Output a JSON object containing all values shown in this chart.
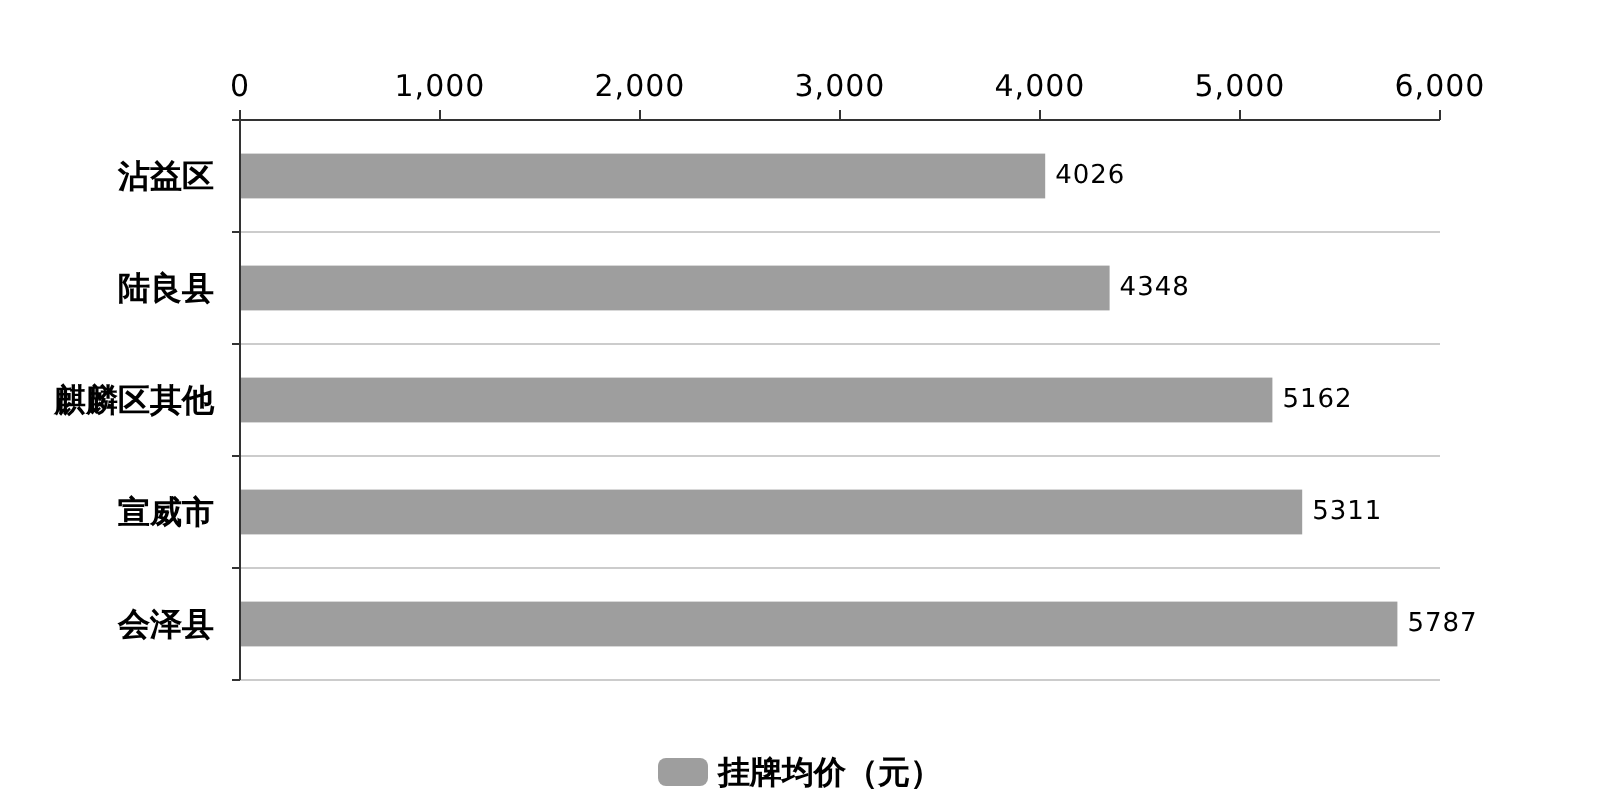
{
  "chart_data": {
    "type": "bar",
    "orientation": "horizontal",
    "categories": [
      "沾益区",
      "陆良县",
      "麒麟区其他",
      "宣威市",
      "会泽县"
    ],
    "series": [
      {
        "name": "挂牌均价（元）",
        "color": "#9e9e9e",
        "values": [
          4026,
          4348,
          5162,
          5311,
          5787
        ]
      }
    ],
    "xlim": [
      0,
      6000
    ],
    "xticks": [
      0,
      {
        "value": 1000,
        "label": "1,000"
      },
      {
        "value": 2000,
        "label": "2,000"
      },
      {
        "value": 3000,
        "label": "3,000"
      },
      {
        "value": 4000,
        "label": "4,000"
      },
      {
        "value": 5000,
        "label": "5,000"
      },
      {
        "value": 6000,
        "label": "6,000"
      }
    ],
    "grid": "y",
    "legend": "bottom",
    "data_labels": true
  }
}
